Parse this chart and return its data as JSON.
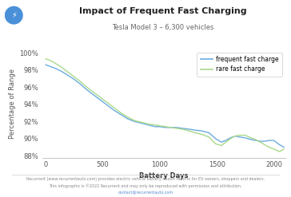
{
  "title": "Impact of Frequent Fast Charging",
  "subtitle": "Tesla Model 3 – 6,300 vehicles",
  "xlabel": "Battery Days",
  "ylabel": "Percentage of Range",
  "legend_labels": [
    "frequent fast charge",
    "rare fast charge"
  ],
  "line_colors": [
    "#6aabdf",
    "#a8d88a"
  ],
  "background_color": "#ffffff",
  "footer_line1": "Recurrent (www.recurrentauto.com) provides electric vehicle battery health reports for EV owners, shoppers and dealers.",
  "footer_line2": "This infographic is ©2022 Recurrent and may only be reproduced with permission and attribution.",
  "footer_line3": "contact@recurrentauto.com",
  "xlim": [
    -30,
    2100
  ],
  "ylim": [
    0.878,
    1.004
  ],
  "yticks": [
    0.88,
    0.9,
    0.92,
    0.94,
    0.96,
    0.98,
    1.0
  ],
  "xticks": [
    0,
    500,
    1000,
    1500,
    2000
  ],
  "frequent_x": [
    0,
    40,
    80,
    130,
    180,
    240,
    300,
    360,
    420,
    480,
    540,
    600,
    660,
    720,
    780,
    840,
    900,
    960,
    1000,
    1050,
    1100,
    1150,
    1200,
    1260,
    1310,
    1370,
    1430,
    1490,
    1540,
    1580,
    1620,
    1660,
    1700,
    1750,
    1800,
    1840,
    1880,
    1920,
    1960,
    2000,
    2050,
    2090
  ],
  "frequent_y": [
    0.986,
    0.984,
    0.982,
    0.979,
    0.975,
    0.97,
    0.964,
    0.957,
    0.951,
    0.945,
    0.939,
    0.933,
    0.928,
    0.923,
    0.92,
    0.918,
    0.916,
    0.914,
    0.914,
    0.913,
    0.913,
    0.913,
    0.912,
    0.911,
    0.91,
    0.909,
    0.907,
    0.9,
    0.896,
    0.898,
    0.901,
    0.903,
    0.902,
    0.901,
    0.899,
    0.898,
    0.897,
    0.897,
    0.898,
    0.898,
    0.893,
    0.89
  ],
  "rare_x": [
    0,
    40,
    80,
    130,
    180,
    240,
    300,
    360,
    420,
    480,
    540,
    600,
    660,
    720,
    780,
    840,
    900,
    960,
    1000,
    1050,
    1100,
    1150,
    1200,
    1260,
    1310,
    1370,
    1430,
    1490,
    1540,
    1580,
    1620,
    1660,
    1700,
    1750,
    1800,
    1840,
    1880,
    1920,
    1960,
    2000,
    2050,
    2090
  ],
  "rare_y": [
    0.993,
    0.991,
    0.988,
    0.984,
    0.979,
    0.973,
    0.967,
    0.96,
    0.954,
    0.948,
    0.942,
    0.936,
    0.93,
    0.925,
    0.921,
    0.919,
    0.917,
    0.916,
    0.915,
    0.914,
    0.913,
    0.912,
    0.911,
    0.909,
    0.907,
    0.905,
    0.902,
    0.894,
    0.892,
    0.896,
    0.9,
    0.903,
    0.904,
    0.904,
    0.901,
    0.899,
    0.896,
    0.893,
    0.89,
    0.888,
    0.885,
    0.888
  ],
  "icon_color": "#4a90d9",
  "title_fontsize": 8,
  "subtitle_fontsize": 6,
  "axis_label_fontsize": 6,
  "tick_fontsize": 6,
  "legend_fontsize": 5.5,
  "footer_fontsize": 3.5
}
